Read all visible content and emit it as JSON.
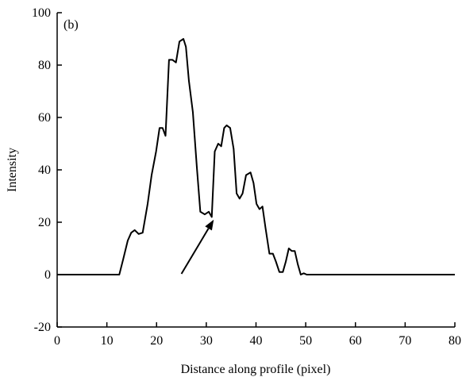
{
  "chart_data": {
    "type": "line",
    "panel_label": "(b)",
    "title": "",
    "xlabel": "Distance along profile (pixel)",
    "ylabel": "Intensity",
    "xlim": [
      0,
      80
    ],
    "ylim": [
      -20,
      100
    ],
    "xticks": [
      0,
      10,
      20,
      30,
      40,
      50,
      60,
      70,
      80
    ],
    "yticks": [
      -20,
      0,
      20,
      40,
      60,
      80,
      100
    ],
    "grid": false,
    "legend": "none",
    "line_color": "#000000",
    "series": [
      {
        "x": [
          0,
          12.5,
          13.3,
          14.2,
          14.9,
          15.6,
          16.4,
          17.2,
          18.2,
          19.0,
          19.9,
          20.6,
          21.2,
          21.8,
          22.5,
          23.2,
          23.9,
          24.6,
          25.4,
          25.9,
          26.5,
          27.3,
          28.1,
          28.8,
          29.7,
          30.5,
          31.1,
          31.7,
          32.4,
          33.0,
          33.6,
          34.1,
          34.8,
          35.5,
          36.1,
          36.7,
          37.3,
          38.0,
          38.9,
          39.5,
          40.1,
          40.7,
          41.3,
          41.9,
          42.7,
          43.4,
          44.0,
          44.7,
          45.4,
          46.0,
          46.6,
          47.2,
          47.8,
          48.4,
          49.0,
          49.6,
          50.2,
          51.0,
          51.8,
          52.6,
          53.3,
          80
        ],
        "y": [
          0,
          0,
          6,
          13,
          16,
          17,
          15.5,
          16,
          27,
          38,
          47,
          56,
          56,
          53,
          82,
          82,
          81,
          89,
          90,
          87,
          74,
          62,
          41,
          24,
          23,
          24,
          22,
          47,
          50,
          49,
          56,
          57,
          56,
          48,
          31,
          29,
          31,
          38,
          39,
          35,
          27,
          25,
          26,
          18,
          8,
          8,
          5,
          1,
          1,
          5,
          10,
          9,
          9,
          4,
          0,
          0.5,
          0,
          0,
          0,
          0,
          0,
          0
        ]
      }
    ],
    "annotations": [
      {
        "type": "arrow",
        "from": [
          25.0,
          0.3
        ],
        "to": [
          31.5,
          21.0
        ]
      }
    ]
  }
}
